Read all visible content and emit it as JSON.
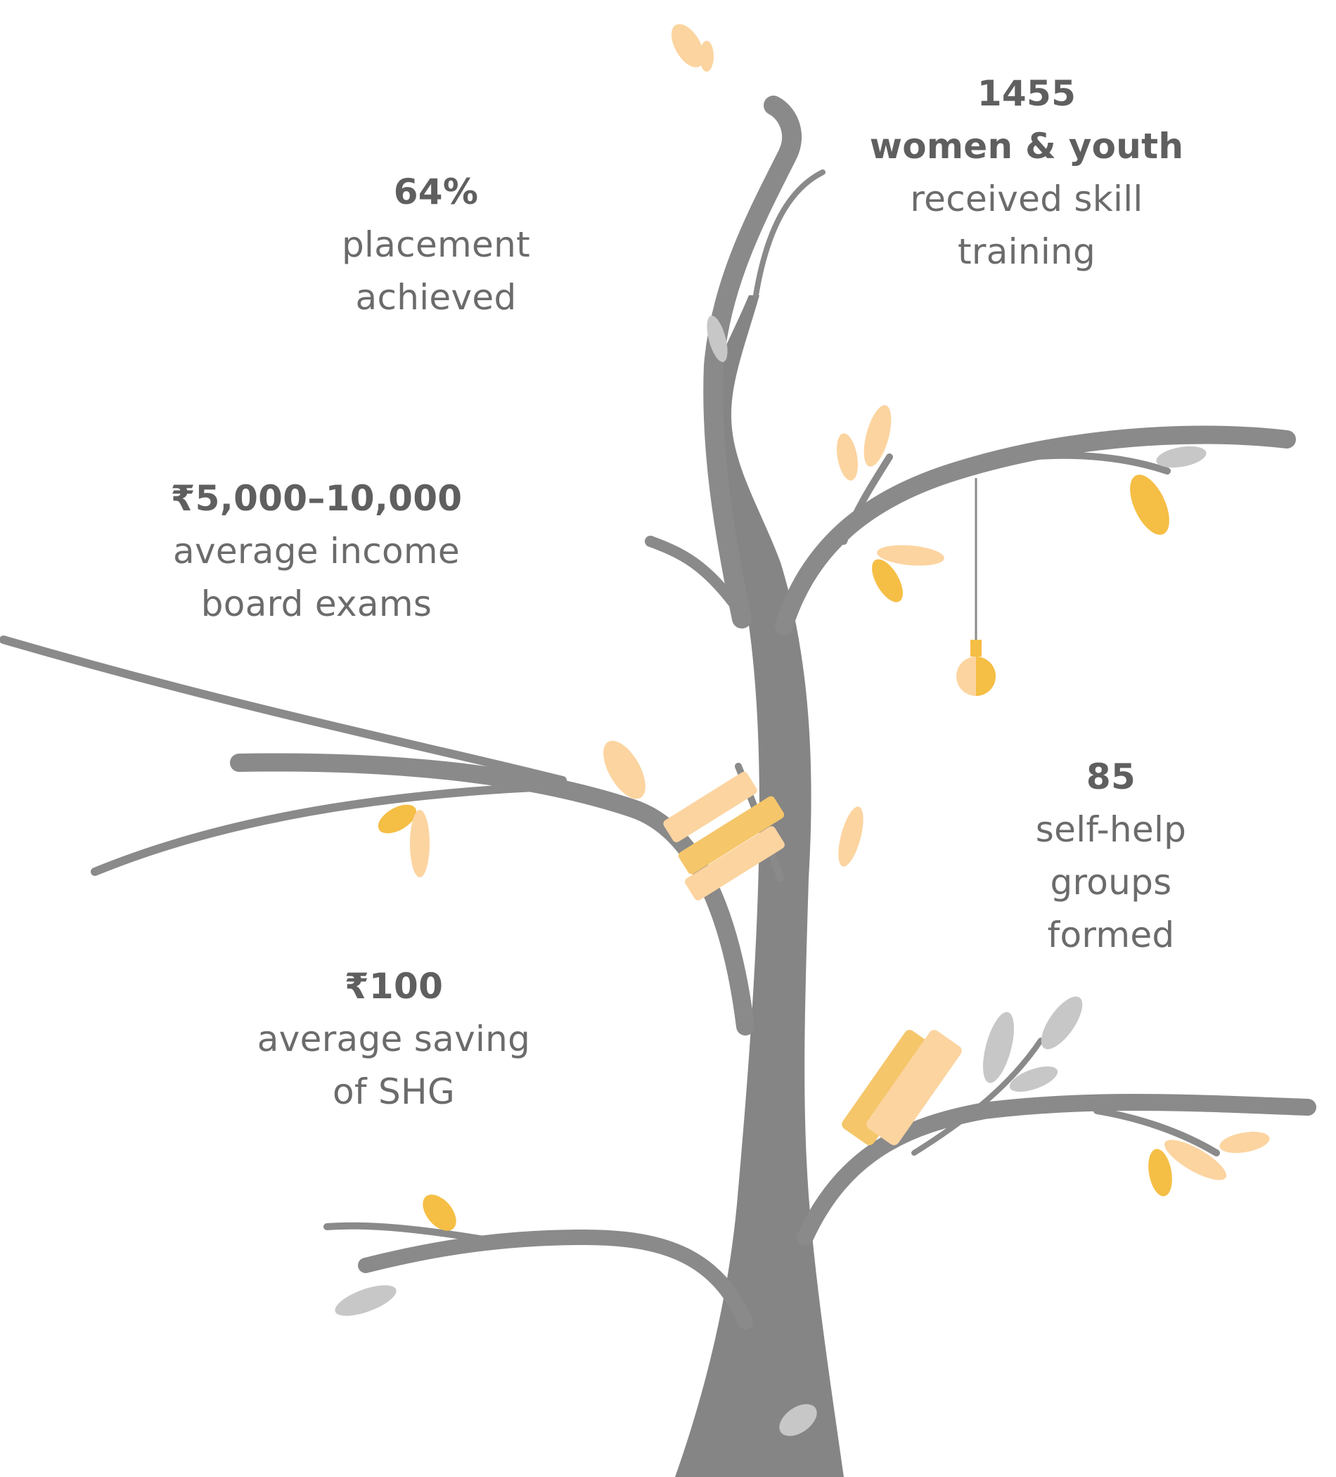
{
  "stats": {
    "placement": {
      "value": "64%",
      "line1": "placement",
      "line2": "achieved"
    },
    "skill_training": {
      "value": "1455",
      "subject": "women & youth",
      "line1": "received skill",
      "line2": "training"
    },
    "income": {
      "value": "₹5,000–10,000",
      "line1": "average income",
      "line2": "board exams"
    },
    "shg_groups": {
      "value": "85",
      "line1": "self-help",
      "line2": "groups",
      "line3": "formed"
    },
    "saving": {
      "value": "₹100",
      "line1": "average saving",
      "line2": "of SHG"
    }
  },
  "colors": {
    "branch": "#8a8a8a",
    "branch_dark": "#7a7a7a",
    "leaf_yellow": "#f5be45",
    "leaf_peach": "#fcd4a0",
    "leaf_grey": "#c7c7c7",
    "text": "#6b6b6b"
  }
}
